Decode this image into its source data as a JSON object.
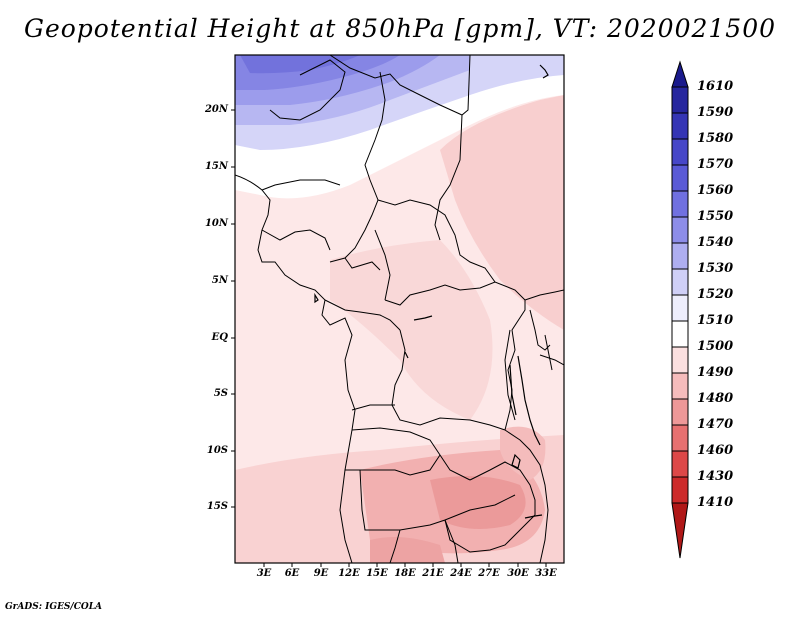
{
  "title": "Geopotential Height at 850hPa [gpm], VT: 2020021500",
  "latitude_labels": [
    "20N",
    "15N",
    "10N",
    "5N",
    "EQ",
    "5S",
    "10S",
    "15S"
  ],
  "longitude_labels": [
    "3E",
    "6E",
    "9E",
    "12E",
    "15E",
    "18E",
    "21E",
    "24E",
    "27E",
    "30E",
    "33E"
  ],
  "colorbar": {
    "levels": [
      "1610",
      "1590",
      "1580",
      "1570",
      "1560",
      "1550",
      "1540",
      "1530",
      "1520",
      "1510",
      "1500",
      "1490",
      "1480",
      "1470",
      "1460",
      "1430",
      "1410"
    ],
    "colors": [
      "#1a1a8c",
      "#26269e",
      "#3535b5",
      "#4747c8",
      "#5a5ad6",
      "#7070e0",
      "#8d8de8",
      "#aeaef0",
      "#d0d0f7",
      "#eeeefc",
      "#ffffff",
      "#fbe0e0",
      "#f5bcbc",
      "#ee9898",
      "#e77070",
      "#dc4848",
      "#cc2a2a",
      "#b01818"
    ]
  },
  "credit": "GrADS: IGES/COLA"
}
